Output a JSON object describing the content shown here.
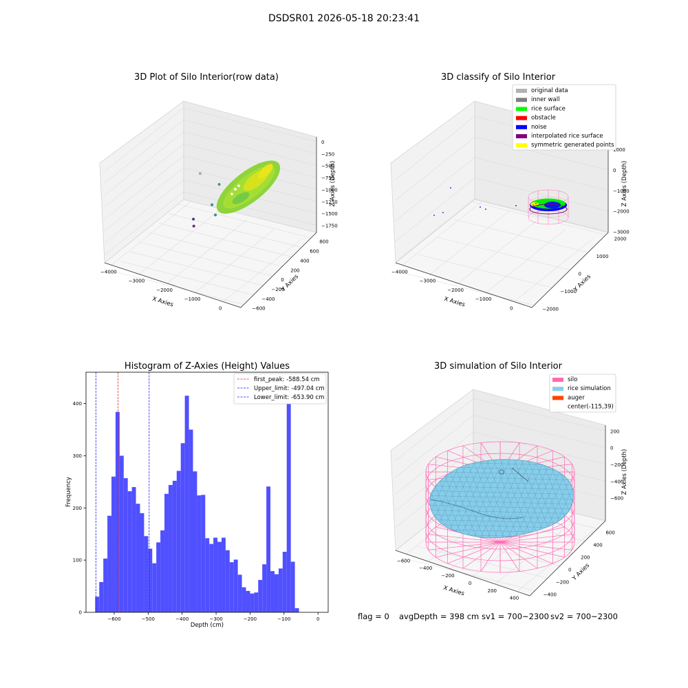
{
  "figure": {
    "title": "DSDSR01 2026-05-18 20:23:41",
    "footer": {
      "flag": "flag = 0",
      "avg_depth": "avgDepth = 398 cm",
      "sv1": "sv1 = 700~2300",
      "sv2": "sv2 = 700~2300"
    }
  },
  "colors": {
    "hist_bar": "#5050ff",
    "first_peak_line": "#d62728",
    "limit_line": "#1a1aff",
    "grey_data": "#b2b2b2",
    "inner_wall": "#808080",
    "rice_surface": "#00ff00",
    "obstacle": "#ff0000",
    "noise": "#0000ff",
    "interpolated": "#800080",
    "symmetric": "#ffff00",
    "silo": "#ff69b4",
    "rice_sim": "#87ceeb",
    "auger": "#ff4500",
    "viridis_green": "#9ad93a"
  },
  "chart_data": [
    {
      "type": "scatter",
      "projection": "3d",
      "title": "3D Plot of Silo Interior(row data)",
      "xlabel": "X Axies",
      "ylabel": "Y Axies",
      "zlabel": "Z Axies (Depth)",
      "x_ticks": [
        "−4000",
        "−3000",
        "−2000",
        "−1000",
        "0"
      ],
      "y_ticks": [
        "−600",
        "−400",
        "−200",
        "0",
        "200",
        "400",
        "600",
        "800"
      ],
      "z_ticks": [
        "0",
        "−250",
        "−500",
        "−750",
        "−1000",
        "−1250",
        "−1500",
        "−1750"
      ],
      "outliers": [
        {
          "x": -3700,
          "y": -100,
          "z": -1100,
          "color": "#aaaaaa"
        },
        {
          "x": -3000,
          "y": 100,
          "z": -1400,
          "color": "#3a9a8a"
        },
        {
          "x": -3300,
          "y": -200,
          "z": -1600,
          "color": "#3a8a8a"
        },
        {
          "x": -3200,
          "y": -350,
          "z": -1650,
          "color": "#3a8a8a"
        },
        {
          "x": -4000,
          "y": -500,
          "z": -1750,
          "color": "#4a3a8a"
        },
        {
          "x": -4000,
          "y": -600,
          "z": -1800,
          "color": "#6a2a7a"
        }
      ]
    },
    {
      "type": "scatter",
      "projection": "3d",
      "title": "3D classify of Silo Interior",
      "xlabel": "X Axies",
      "ylabel": "Y Axies",
      "zlabel": "Z Axies (Depth)",
      "x_ticks": [
        "−4000",
        "−3000",
        "−2000",
        "−1000",
        "0"
      ],
      "y_ticks": [
        "−2000",
        "−1000",
        "0",
        "1000",
        "2000"
      ],
      "z_ticks": [
        "1000",
        "0",
        "−1000",
        "−2000",
        "−3000"
      ],
      "legend": [
        {
          "label": "original data",
          "color": "#b2b2b2"
        },
        {
          "label": "inner wall",
          "color": "#808080"
        },
        {
          "label": "rice surface",
          "color": "#00ff00"
        },
        {
          "label": "obstacle",
          "color": "#ff0000"
        },
        {
          "label": "noise",
          "color": "#0000ff"
        },
        {
          "label": "interpolated rice surface",
          "color": "#800080"
        },
        {
          "label": "symmetric generated points",
          "color": "#ffff00"
        }
      ],
      "legend_position": "top-right"
    },
    {
      "type": "bar",
      "title": "Histogram of Z-Axies (Height) Values",
      "xlabel": "Depth (cm)",
      "ylabel": "Frequency",
      "xlim": [
        -683,
        30
      ],
      "ylim": [
        0,
        460
      ],
      "x_ticks": [
        -600,
        -500,
        -400,
        -300,
        -200,
        -100,
        0
      ],
      "x_tick_labels": [
        "−600",
        "−500",
        "−400",
        "−300",
        "−200",
        "−100",
        "0"
      ],
      "y_ticks": [
        0,
        100,
        200,
        300,
        400
      ],
      "bin_start": -656,
      "bin_width": 12,
      "values": [
        30,
        58,
        103,
        185,
        260,
        384,
        300,
        257,
        232,
        240,
        208,
        190,
        146,
        122,
        94,
        134,
        157,
        227,
        244,
        252,
        271,
        324,
        415,
        350,
        270,
        224,
        225,
        142,
        131,
        143,
        135,
        143,
        119,
        96,
        101,
        72,
        48,
        41,
        36,
        38,
        62,
        92,
        241,
        79,
        73,
        84,
        116,
        436,
        97,
        8
      ],
      "vlines": [
        {
          "label": "first_peak: -588.54 cm",
          "x": -588.54,
          "color": "#d62728"
        },
        {
          "label": "Upper_limit: -497.04 cm",
          "x": -497.04,
          "color": "#1a1aff"
        },
        {
          "label": "Lower_limit: -653.90 cm",
          "x": -653.9,
          "color": "#1a1aff"
        }
      ],
      "legend_position": "top-right"
    },
    {
      "type": "surface",
      "projection": "3d",
      "title": "3D simulation of Silo Interior",
      "xlabel": "X Axies",
      "ylabel": "Y Axies",
      "zlabel": "Z Axies (Depth)",
      "x_ticks": [
        "−600",
        "−400",
        "−200",
        "0",
        "200",
        "400"
      ],
      "y_ticks": [
        "−400",
        "−200",
        "0",
        "200",
        "400",
        "600"
      ],
      "z_ticks": [
        "200",
        "0",
        "−200",
        "−400",
        "−600"
      ],
      "legend": [
        {
          "label": "silo",
          "color": "#ff69b4"
        },
        {
          "label": "rice simulation",
          "color": "#87ceeb"
        },
        {
          "label": "auger",
          "color": "#ff4500"
        },
        {
          "label": "center(-115,39)",
          "color": ""
        }
      ],
      "legend_position": "top-right"
    }
  ]
}
